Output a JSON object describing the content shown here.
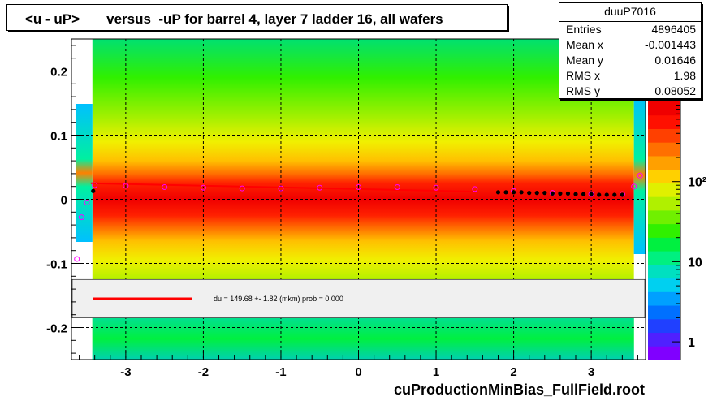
{
  "title": "<u - uP>       versus  -uP for barrel 4, layer 7 ladder 16, all wafers",
  "stats": {
    "name": "duuP7016",
    "rows": [
      {
        "key": "Entries",
        "value": "4896405"
      },
      {
        "key": "Mean x",
        "value": "-0.001443"
      },
      {
        "key": "Mean y",
        "value": "0.01646"
      },
      {
        "key": "RMS x",
        "value": "1.98"
      },
      {
        "key": "RMS y",
        "value": "0.08052"
      }
    ]
  },
  "footer": "cuProductionMinBias_FullField.root",
  "fit_legend": "du =  149.68 +-  1.82 (mkm) prob = 0.000",
  "colors": {
    "fit_line": "#ff0000",
    "profile_open": "#ff00ff",
    "profile_filled": "#000000"
  },
  "chart_data": {
    "type": "heatmap",
    "title": "<u - uP>       versus  -uP for barrel 4, layer 7 ladder 16, all wafers",
    "xlim": [
      -3.7,
      3.7
    ],
    "ylim": [
      -0.25,
      0.25
    ],
    "x_ticks": [
      -3,
      -2,
      -1,
      0,
      1,
      2,
      3
    ],
    "x_tick_labels": [
      "-3",
      "-2",
      "-1",
      "0",
      "1",
      "2",
      "3"
    ],
    "y_ticks": [
      -0.2,
      -0.1,
      0,
      0.1,
      0.2
    ],
    "y_tick_labels": [
      "-0.2",
      "-0.1",
      "0",
      "0.1",
      "0.2"
    ],
    "grid": true,
    "colorbar": {
      "scale": "log",
      "ticks": [
        1,
        10,
        100
      ],
      "tick_labels": [
        "1",
        "10",
        "10²"
      ],
      "range": [
        0.6,
        1000
      ]
    },
    "band_center_y": 0.0,
    "profile_open_circles": [
      {
        "x": -3.63,
        "y": -0.093
      },
      {
        "x": -3.57,
        "y": -0.028
      },
      {
        "x": -3.5,
        "y": -0.005
      },
      {
        "x": -3.4,
        "y": 0.022
      },
      {
        "x": -3.0,
        "y": 0.021
      },
      {
        "x": -2.5,
        "y": 0.019
      },
      {
        "x": -2.0,
        "y": 0.018
      },
      {
        "x": -1.5,
        "y": 0.017
      },
      {
        "x": -1.0,
        "y": 0.017
      },
      {
        "x": -0.5,
        "y": 0.018
      },
      {
        "x": 0.0,
        "y": 0.019
      },
      {
        "x": 0.5,
        "y": 0.019
      },
      {
        "x": 1.0,
        "y": 0.018
      },
      {
        "x": 1.5,
        "y": 0.016
      },
      {
        "x": 2.0,
        "y": 0.013
      },
      {
        "x": 2.5,
        "y": 0.01
      },
      {
        "x": 3.0,
        "y": 0.008
      },
      {
        "x": 3.4,
        "y": 0.008
      },
      {
        "x": 3.55,
        "y": 0.02
      },
      {
        "x": 3.63,
        "y": 0.037
      }
    ],
    "profile_filled_points": [
      {
        "x": -3.42,
        "y": 0.013
      },
      {
        "x": 1.8,
        "y": 0.011
      },
      {
        "x": 1.9,
        "y": 0.011
      },
      {
        "x": 2.0,
        "y": 0.011
      },
      {
        "x": 2.1,
        "y": 0.011
      },
      {
        "x": 2.2,
        "y": 0.01
      },
      {
        "x": 2.3,
        "y": 0.01
      },
      {
        "x": 2.4,
        "y": 0.01
      },
      {
        "x": 2.5,
        "y": 0.009
      },
      {
        "x": 2.6,
        "y": 0.009
      },
      {
        "x": 2.7,
        "y": 0.009
      },
      {
        "x": 2.8,
        "y": 0.008
      },
      {
        "x": 2.9,
        "y": 0.008
      },
      {
        "x": 3.0,
        "y": 0.008
      },
      {
        "x": 3.1,
        "y": 0.007
      },
      {
        "x": 3.2,
        "y": 0.007
      },
      {
        "x": 3.3,
        "y": 0.007
      },
      {
        "x": 3.4,
        "y": 0.007
      }
    ],
    "fit_line": [
      {
        "x": -3.45,
        "y": 0.025
      },
      {
        "x": 1.5,
        "y": 0.012
      }
    ],
    "legend_box_y": [
      -0.185,
      -0.125
    ]
  }
}
